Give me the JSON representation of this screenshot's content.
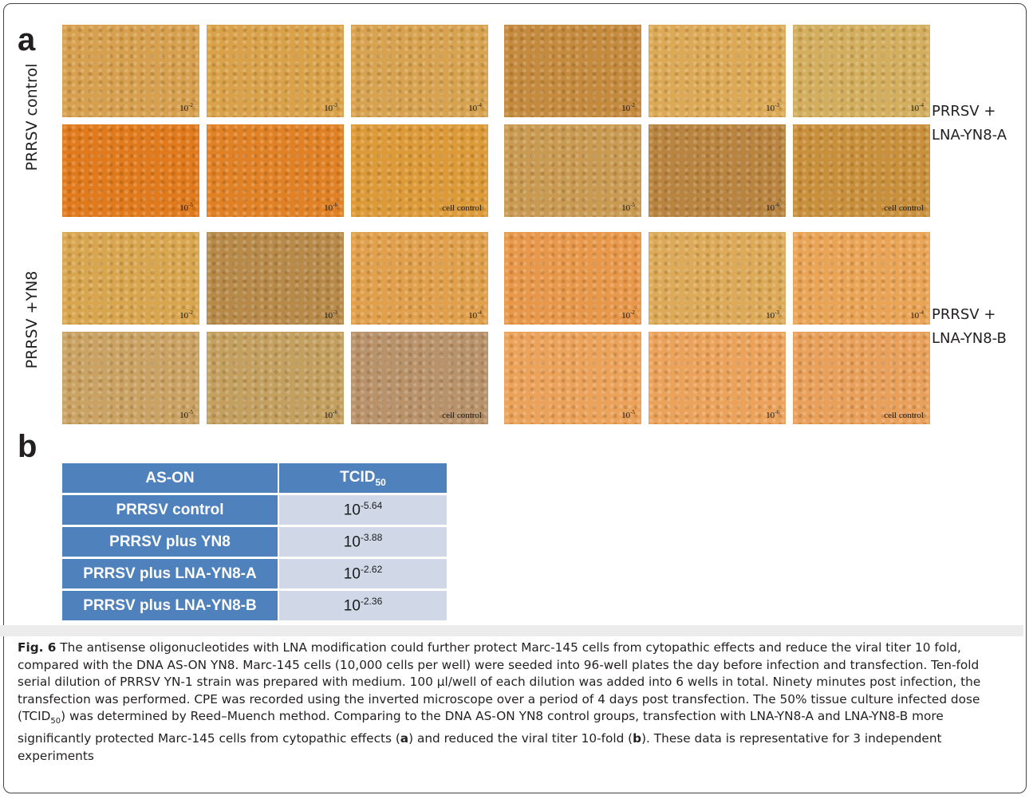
{
  "panel_a": {
    "letter": "a",
    "row_labels": [
      "PRRSV control",
      "PRRSV +YN8"
    ],
    "side_labels": [
      {
        "line1": "PRRSV +",
        "line2": "LNA-YN8-A"
      },
      {
        "line1": "PRRSV +",
        "line2": "LNA-YN8-B"
      }
    ],
    "images": [
      {
        "base": "10",
        "exp": "-2",
        "text": "",
        "color": "#d6a04f"
      },
      {
        "base": "10",
        "exp": "-3",
        "text": "",
        "color": "#d9a24a"
      },
      {
        "base": "10",
        "exp": "-4",
        "text": "",
        "color": "#d7a350"
      },
      {
        "base": "10",
        "exp": "-2",
        "text": "",
        "color": "#c48a3e"
      },
      {
        "base": "10",
        "exp": "-3",
        "text": "",
        "color": "#dcaa57"
      },
      {
        "base": "10",
        "exp": "-4",
        "text": "",
        "color": "#d2ae5e"
      },
      {
        "base": "10",
        "exp": "-5",
        "text": "",
        "color": "#e07a1c"
      },
      {
        "base": "10",
        "exp": "-6",
        "text": "",
        "color": "#e08126"
      },
      {
        "base": "",
        "exp": "",
        "text": "cell control",
        "color": "#dc9a38"
      },
      {
        "base": "10",
        "exp": "-5",
        "text": "",
        "color": "#c99a52"
      },
      {
        "base": "10",
        "exp": "-6",
        "text": "",
        "color": "#b88440"
      },
      {
        "base": "",
        "exp": "",
        "text": "cell control",
        "color": "#c9903c"
      },
      {
        "base": "10",
        "exp": "-2",
        "text": "",
        "color": "#d9a650"
      },
      {
        "base": "10",
        "exp": "-3",
        "text": "",
        "color": "#b78a4a"
      },
      {
        "base": "10",
        "exp": "-4",
        "text": "",
        "color": "#e0a04c"
      },
      {
        "base": "10",
        "exp": "-2",
        "text": "",
        "color": "#e8984a"
      },
      {
        "base": "10",
        "exp": "-3",
        "text": "",
        "color": "#dcaa58"
      },
      {
        "base": "10",
        "exp": "-4",
        "text": "",
        "color": "#e9a456"
      },
      {
        "base": "10",
        "exp": "-5",
        "text": "",
        "color": "#c9a264"
      },
      {
        "base": "10",
        "exp": "-6",
        "text": "",
        "color": "#c3a060"
      },
      {
        "base": "",
        "exp": "",
        "text": "cell control",
        "color": "#b8926a"
      },
      {
        "base": "10",
        "exp": "-5",
        "text": "",
        "color": "#eba25a"
      },
      {
        "base": "10",
        "exp": "-6",
        "text": "",
        "color": "#eba35c"
      },
      {
        "base": "",
        "exp": "",
        "text": "cell control",
        "color": "#e8a05a"
      }
    ]
  },
  "panel_b": {
    "letter": "b",
    "table": {
      "header_col1": "AS-ON",
      "header_col2_main": "TCID",
      "header_col2_sub": "50",
      "rows": [
        {
          "label": "PRRSV control",
          "base": "10",
          "exp": "-5.64"
        },
        {
          "label": "PRRSV plus YN8",
          "base": "10",
          "exp": "-3.88"
        },
        {
          "label": "PRRSV plus LNA-YN8-A",
          "base": "10",
          "exp": "-2.62"
        },
        {
          "label": "PRRSV plus LNA-YN8-B",
          "base": "10",
          "exp": "-2.36"
        }
      ]
    }
  },
  "caption": {
    "fig_label": "Fig. 6",
    "part1": " The antisense oligonucleotides with LNA modification could further protect Marc-145 cells from cytopathic effects and reduce the viral titer 10 fold, compared with the DNA AS-ON YN8. Marc-145 cells (10,000 cells per well) were seeded into 96-well plates the day before infection and transfection. Ten-fold serial dilution of PRRSV YN-1 strain was prepared with medium. 100 μl/well of each dilution was added into 6 wells in total. Ninety minutes post infection, the transfection was performed. CPE was recorded using the inverted microscope over a period of 4 days post transfection. The 50% tissue culture infected dose (TCID",
    "sub": "50",
    "part2": ") was determined by Reed–Muench method. Comparing to the DNA AS-ON YN8 control groups, transfection with LNA-YN8-A and LNA-YN8-B more significantly protected Marc-145 cells from cytopathic effects (",
    "ref_a": "a",
    "part3": ") and reduced the viral titer 10-fold (",
    "ref_b": "b",
    "part4": "). These data is representative for 3 independent experiments"
  }
}
